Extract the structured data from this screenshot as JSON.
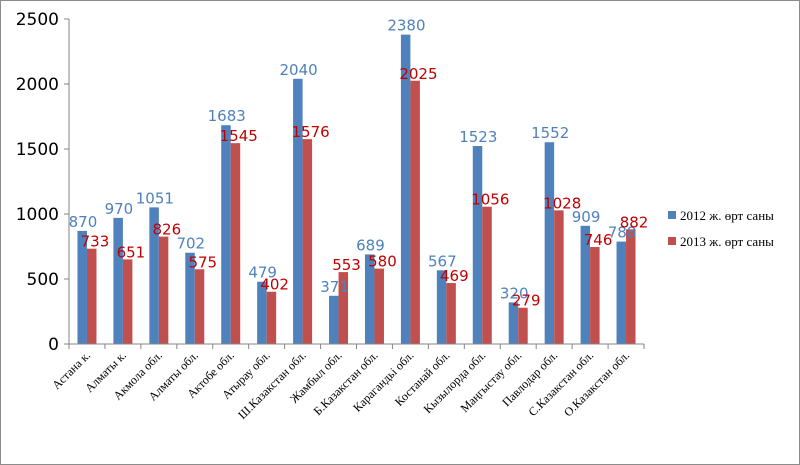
{
  "chart_data": {
    "type": "bar",
    "categories": [
      "Астана к.",
      "Алматы к.",
      "Акмола обл.",
      "Алматы обл.",
      "Актобе обл.",
      "Атырау обл.",
      "Ш.Казакстан обл.",
      "Жамбыл обл.",
      "Б.Казакстан обл.",
      "Карагандьі обл.",
      "Костанай обл.",
      "Кызылорда обл.",
      "Маңгыстау обл.",
      "Павлодар обл.",
      "С.Казакстан обл.",
      "О.Казакстан обл."
    ],
    "series": [
      {
        "name": "2012 ж. өрт саны",
        "color": "#4f81bd",
        "label_color": "#4f81bd",
        "values": [
          870,
          970,
          1051,
          702,
          1683,
          479,
          2040,
          371,
          689,
          2380,
          567,
          1523,
          320,
          1552,
          909,
          788
        ]
      },
      {
        "name": "2013 ж. өрт саны",
        "color": "#c0504d",
        "label_color": "#c00000",
        "values": [
          733,
          651,
          826,
          575,
          1545,
          402,
          1576,
          553,
          580,
          2025,
          469,
          1056,
          279,
          1028,
          746,
          882
        ]
      }
    ],
    "ylim": [
      0,
      2500
    ],
    "yticks": [
      0,
      500,
      1000,
      1500,
      2000,
      2500
    ],
    "grid": false,
    "legend_position": "right"
  }
}
